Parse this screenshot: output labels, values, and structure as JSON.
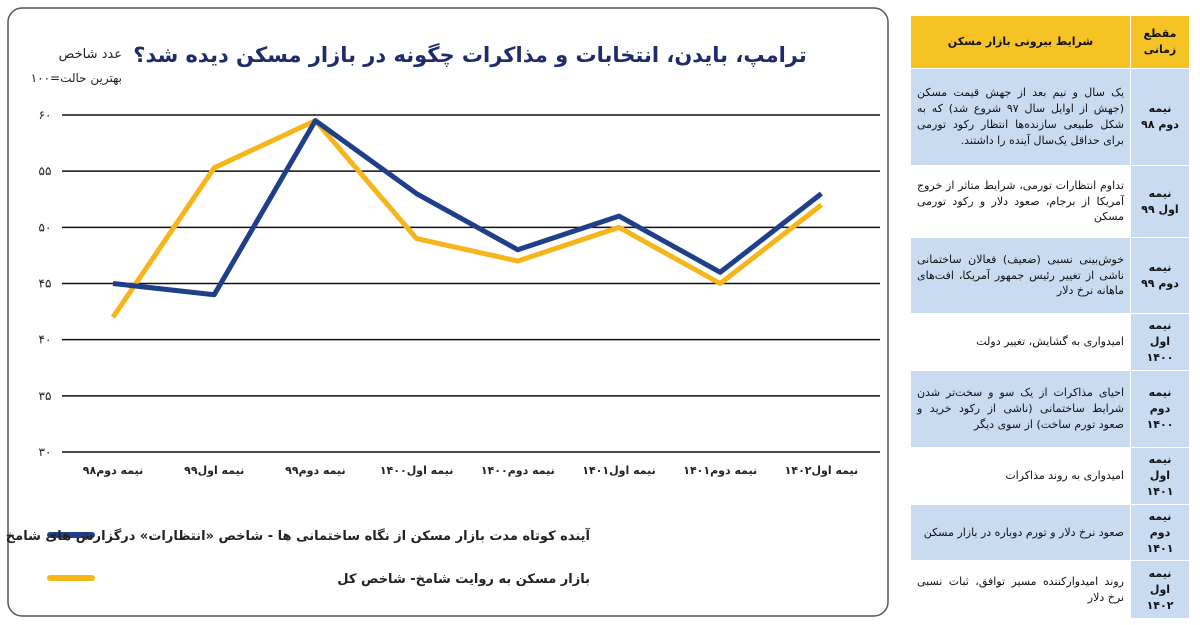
{
  "chart_data": {
    "type": "line",
    "title": "ترامپ، بایدن، انتخابات و مذاکرات چگونه در بازار مسکن دیده شد؟",
    "y_label": "عدد شاخص",
    "y_note": "بهترین حالت=۱۰۰",
    "categories": [
      "نیمه دوم۹۸",
      "نیمه اول۹۹",
      "نیمه دوم۹۹",
      "نیمه اول۱۴۰۰",
      "نیمه دوم۱۴۰۰",
      "نیمه اول۱۴۰۱",
      "نیمه دوم۱۴۰۱",
      "نیمه اول۱۴۰۲"
    ],
    "series": [
      {
        "name": "آینده کوتاه مدت بازار مسکن از نگاه ساختمانی ها - شاخص «انتظارات» درگزارش های شامخ",
        "color": "#1f3f8a",
        "values": [
          45,
          44,
          59.5,
          53,
          48,
          51,
          46,
          53
        ]
      },
      {
        "name": "بازار مسکن به روایت شامخ- شاخص کل",
        "color": "#f6b519",
        "values": [
          42,
          55.3,
          59.5,
          49,
          47,
          50,
          45,
          52
        ]
      }
    ],
    "ylim": [
      30,
      60
    ],
    "yticks": [
      {
        "value": 30,
        "label": "۳۰"
      },
      {
        "value": 35,
        "label": "۳۵"
      },
      {
        "value": 40,
        "label": "۴۰"
      },
      {
        "value": 45,
        "label": "۴۵"
      },
      {
        "value": 50,
        "label": "۵۰"
      },
      {
        "value": 55,
        "label": "۵۵"
      },
      {
        "value": 60,
        "label": "۶۰"
      }
    ],
    "grid": true
  },
  "table": {
    "header": [
      "مقطع زمانی",
      "شرایط بیرونی بازار مسکن"
    ],
    "rows": [
      [
        "نیمه دوم ۹۸",
        "یک سال و نیم بعد از جهش قیمت مسکن (جهش از اوایل سال ۹۷ شروع شد) که به شکل طبیعی سازنده‌ها انتظار رکود تورمی برای حداقل یک‌سال آینده را داشتند."
      ],
      [
        "نیمه اول ۹۹",
        "تداوم انتظارات تورمی، شرایط متاثر از خروج آمریکا از برجام، صعود دلار و رکود تورمی مسکن"
      ],
      [
        "نیمه دوم ۹۹",
        "خوش‌بینی نسبی (ضعیف) فعالان ساختمانی ناشی از تغییر رئیس جمهور آمریکا، افت‌های ماهانه نرخ دلار"
      ],
      [
        "نیمه اول ۱۴۰۰",
        "امیدواری به گشایش، تغییر دولت"
      ],
      [
        "نیمه دوم ۱۴۰۰",
        "احیای مذاکرات از یک سو و سخت‌تر شدن شرایط ساختمانی (ناشی از رکود خرید و صعود تورم ساخت) از سوی دیگر"
      ],
      [
        "نیمه اول ۱۴۰۱",
        "امیدواری به روند مذاکرات"
      ],
      [
        "نیمه دوم ۱۴۰۱",
        "صعود نرخ دلار و تورم دوباره در بازار مسکن"
      ],
      [
        "نیمه اول ۱۴۰۲",
        "روند امیدوارکننده مسیر توافق، ثبات نسبی نرخ دلار"
      ]
    ]
  }
}
